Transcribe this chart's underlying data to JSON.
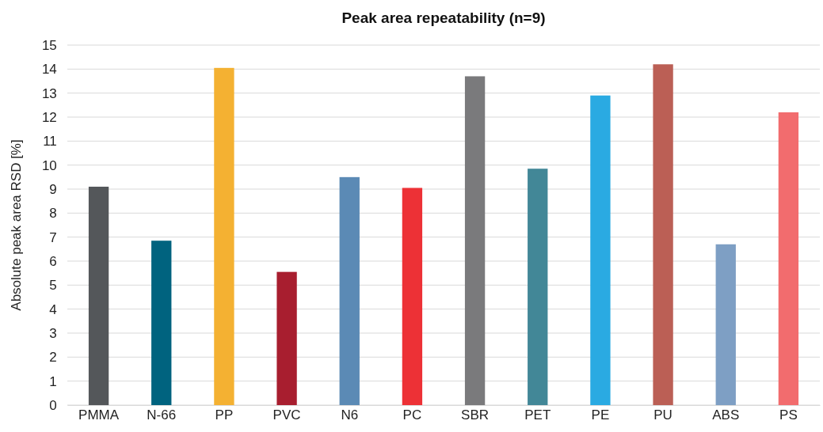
{
  "chart_data": {
    "type": "bar",
    "title": "Peak area repeatability (n=9)",
    "ylabel": "Absolute peak area RSD [%]",
    "categories": [
      "PMMA",
      "N-66",
      "PP",
      "PVC",
      "N6",
      "PC",
      "SBR",
      "PET",
      "PE",
      "PU",
      "ABS",
      "PS"
    ],
    "values": [
      9.1,
      6.85,
      14.05,
      5.55,
      9.5,
      9.05,
      13.7,
      9.85,
      12.9,
      14.2,
      6.7,
      12.2
    ],
    "colors": [
      "#54575a",
      "#00637f",
      "#f4b132",
      "#a81e2f",
      "#5b8ab5",
      "#ed3136",
      "#7a7a7c",
      "#428797",
      "#2aaae2",
      "#bb5f55",
      "#7e9fc4",
      "#f26c6e"
    ],
    "ylim": [
      0,
      15
    ],
    "yticks": [
      0,
      1,
      2,
      3,
      4,
      5,
      6,
      7,
      8,
      9,
      10,
      11,
      12,
      13,
      14,
      15
    ],
    "grid": "y"
  }
}
